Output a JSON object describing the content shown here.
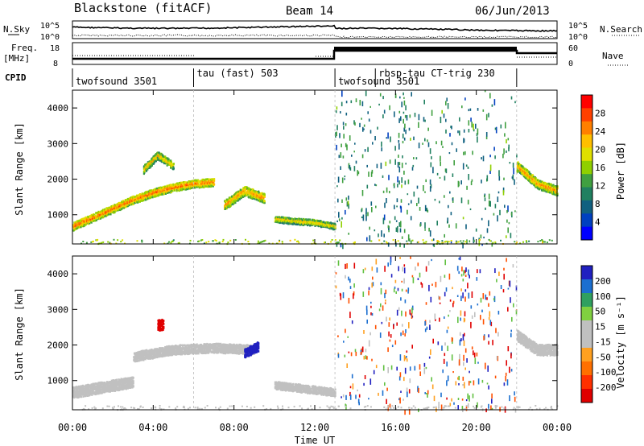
{
  "header": {
    "station": "Blackstone (fitACF)",
    "beam": "Beam 14",
    "date": "06/Jun/2013"
  },
  "top_panels": {
    "nsky_label": "N.Sky",
    "nsearch_label": "N.Search",
    "noise_ticks": [
      "10^5",
      "10^0"
    ],
    "freq_label": "Freq.",
    "freq_unit": "[MHz]",
    "freq_ticks": [
      "18",
      "8"
    ],
    "nave_label": "Nave",
    "nave_ticks": [
      "60",
      "0"
    ],
    "cpid_label": "CPID"
  },
  "cpid_segments": [
    {
      "name": "twofsound 3501",
      "start": 0,
      "end": 6
    },
    {
      "name": "tau (fast) 503",
      "start": 6,
      "end": 13
    },
    {
      "name": "twofsound 3501",
      "start": 13,
      "end": 15
    },
    {
      "name": "rbsp-tau CT-trig 230",
      "start": 15,
      "end": 22
    }
  ],
  "axes": {
    "ylabel": "Slant Range [km]",
    "xlabel": "Time UT",
    "x_ticks": [
      "00:00",
      "04:00",
      "08:00",
      "12:00",
      "16:00",
      "20:00",
      "00:00"
    ],
    "y_ticks": [
      "1000",
      "2000",
      "3000",
      "4000"
    ]
  },
  "colorbars": {
    "power": {
      "label": "Power [dB]",
      "ticks": [
        "28",
        "24",
        "20",
        "16",
        "12",
        "8",
        "4"
      ],
      "colors": [
        "#ff0000",
        "#ff4000",
        "#ff7f00",
        "#ffbf00",
        "#e0e000",
        "#90d000",
        "#40a040",
        "#208060",
        "#106080",
        "#0040c0",
        "#0000ff"
      ]
    },
    "velocity": {
      "label": "Velocity [m s⁻¹]",
      "ticks": [
        "200",
        "100",
        "50",
        "15",
        "-15",
        "-50",
        "-100",
        "-200"
      ],
      "colors": [
        "#2020c0",
        "#1c6fd0",
        "#30a060",
        "#80d040",
        "#c0c0c0",
        "#c0c0c0",
        "#ffa020",
        "#ff7000",
        "#ff3000",
        "#e00000"
      ]
    }
  },
  "chart_data": [
    {
      "type": "heatmap",
      "title": "Power",
      "xlabel": "Time UT",
      "ylabel": "Slant Range [km]",
      "xlim": [
        0,
        24
      ],
      "ylim": [
        180,
        4500
      ],
      "unit": "dB",
      "bands": [
        {
          "x": [
            0,
            1,
            2,
            3,
            4,
            5,
            6,
            7
          ],
          "y": [
            700,
            950,
            1200,
            1450,
            1650,
            1800,
            1900,
            1950
          ],
          "width_km": 200,
          "level_db": 26
        },
        {
          "x": [
            3.5,
            4.2,
            5.0
          ],
          "y": [
            2300,
            2700,
            2400
          ],
          "width_km": 200,
          "level_db": 22
        },
        {
          "x": [
            7.5,
            8.5,
            9.5
          ],
          "y": [
            1300,
            1700,
            1500
          ],
          "width_km": 250,
          "level_db": 24
        },
        {
          "x": [
            10,
            11,
            12,
            13
          ],
          "y": [
            900,
            850,
            800,
            700
          ],
          "width_km": 150,
          "level_db": 22
        },
        {
          "x": [
            22,
            23,
            24
          ],
          "y": [
            2400,
            1900,
            1700
          ],
          "width_km": 250,
          "level_db": 24
        }
      ]
    },
    {
      "type": "heatmap",
      "title": "Velocity",
      "xlabel": "Time UT",
      "ylabel": "Slant Range [km]",
      "xlim": [
        0,
        24
      ],
      "ylim": [
        180,
        4500
      ],
      "unit": "m s-1",
      "bands": [
        {
          "x": [
            0,
            1,
            2,
            3
          ],
          "y": [
            700,
            800,
            900,
            1000
          ],
          "width_km": 300,
          "level_ms": 0
        },
        {
          "x": [
            3,
            5,
            7,
            9
          ],
          "y": [
            1700,
            1900,
            1950,
            1900
          ],
          "width_km": 250,
          "level_ms": 0
        },
        {
          "x": [
            4.2
          ],
          "y": [
            2600
          ],
          "width_km": 300,
          "level_ms": -180
        },
        {
          "x": [
            8.5,
            9.2
          ],
          "y": [
            1800,
            2000
          ],
          "width_km": 250,
          "level_ms": 180
        },
        {
          "x": [
            10,
            11.5,
            13
          ],
          "y": [
            900,
            800,
            700
          ],
          "width_km": 200,
          "level_ms": 0
        },
        {
          "x": [
            22,
            23,
            24
          ],
          "y": [
            2300,
            1900,
            1900
          ],
          "width_km": 300,
          "level_ms": 0
        }
      ]
    }
  ]
}
